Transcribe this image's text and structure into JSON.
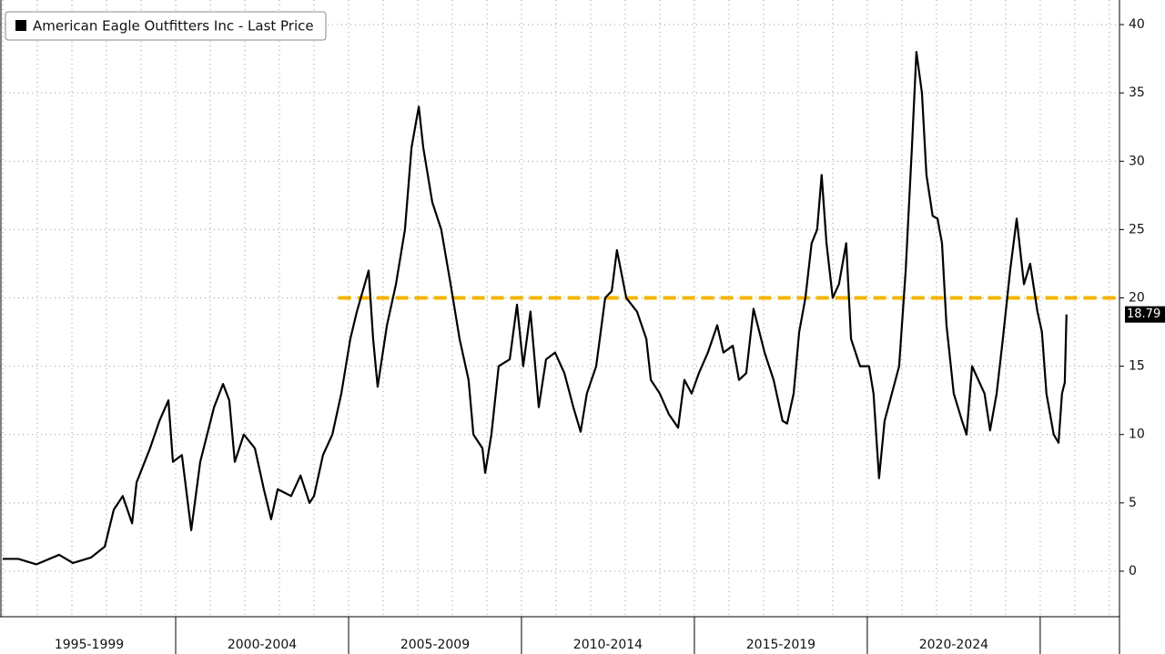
{
  "chart_data": {
    "type": "line",
    "x": [
      1995.0,
      1995.45,
      1995.97,
      1996.63,
      1997.03,
      1997.55,
      1997.95,
      1998.21,
      1998.47,
      1998.74,
      1998.87,
      1999.26,
      1999.53,
      1999.79,
      1999.92,
      2000.18,
      2000.45,
      2000.71,
      2001.11,
      2001.37,
      2001.55,
      2001.71,
      2001.97,
      2002.29,
      2002.55,
      2002.76,
      2002.95,
      2003.34,
      2003.61,
      2003.87,
      2004.0,
      2004.26,
      2004.53,
      2004.79,
      2005.05,
      2005.24,
      2005.58,
      2005.71,
      2005.84,
      2006.11,
      2006.37,
      2006.63,
      2006.82,
      2007.03,
      2007.16,
      2007.42,
      2007.68,
      2007.95,
      2008.21,
      2008.47,
      2008.61,
      2008.87,
      2008.95,
      2009.13,
      2009.34,
      2009.66,
      2009.87,
      2010.05,
      2010.26,
      2010.5,
      2010.71,
      2010.97,
      2011.24,
      2011.5,
      2011.71,
      2011.89,
      2012.16,
      2012.42,
      2012.61,
      2012.76,
      2013.03,
      2013.34,
      2013.61,
      2013.74,
      2014.0,
      2014.26,
      2014.53,
      2014.71,
      2014.92,
      2015.13,
      2015.39,
      2015.66,
      2015.84,
      2016.11,
      2016.29,
      2016.5,
      2016.71,
      2017.03,
      2017.29,
      2017.55,
      2017.68,
      2017.87,
      2018.03,
      2018.21,
      2018.39,
      2018.55,
      2018.68,
      2018.82,
      2019.0,
      2019.18,
      2019.39,
      2019.53,
      2019.79,
      2020.05,
      2020.18,
      2020.34,
      2020.5,
      2020.71,
      2020.92,
      2021.11,
      2021.29,
      2021.42,
      2021.58,
      2021.71,
      2021.89,
      2022.03,
      2022.16,
      2022.29,
      2022.5,
      2022.74,
      2022.87,
      2023.03,
      2023.21,
      2023.39,
      2023.55,
      2023.74,
      2023.92,
      2024.13,
      2024.32,
      2024.53,
      2024.71,
      2024.92,
      2025.05,
      2025.18,
      2025.39,
      2025.53,
      2025.63,
      2025.71,
      2025.76
    ],
    "series": [
      {
        "name": "American Eagle Outfitters Inc - Last Price",
        "color": "#000000",
        "values": [
          0.9,
          0.9,
          0.5,
          1.2,
          0.6,
          1.0,
          1.8,
          4.5,
          5.5,
          3.5,
          6.5,
          9,
          11,
          12.5,
          8,
          8.5,
          3,
          8,
          12,
          13.7,
          12.5,
          8,
          10,
          9,
          6,
          3.8,
          6,
          5.5,
          7,
          5,
          5.5,
          8.5,
          10,
          13,
          17,
          19,
          22,
          17,
          13.5,
          18,
          21,
          25,
          31,
          34,
          31,
          27,
          25,
          21,
          17,
          14,
          10,
          9,
          7.2,
          10,
          15,
          15.5,
          19.5,
          15,
          19,
          12,
          15.5,
          16,
          14.5,
          12,
          10.2,
          13,
          15,
          20,
          20.5,
          23.5,
          20,
          19,
          17,
          14,
          13,
          11.5,
          10.5,
          14,
          13,
          14.5,
          16,
          18,
          16,
          16.5,
          14,
          14.5,
          19.2,
          16,
          14,
          11,
          10.8,
          13,
          17.5,
          20,
          24,
          25,
          29,
          24,
          20,
          21,
          24,
          17,
          15,
          15,
          13,
          6.8,
          11,
          13,
          15,
          22,
          31,
          38,
          35,
          29,
          26,
          25.8,
          24,
          18,
          13,
          11,
          10,
          15,
          14,
          13,
          10.3,
          13,
          17,
          22,
          25.8,
          21,
          22.5,
          19,
          17.5,
          13,
          10,
          9.4,
          13,
          13.8,
          18.79
        ]
      }
    ],
    "reference_line": {
      "value": 20,
      "start": 2004.7,
      "color": "#f5b400"
    },
    "xlim": [
      1994.92,
      2027.24
    ],
    "xticks": [
      {
        "value": 1997.5,
        "label": "1995-1999"
      },
      {
        "value": 2002.5,
        "label": "2000-2004"
      },
      {
        "value": 2007.5,
        "label": "2005-2009"
      },
      {
        "value": 2012.5,
        "label": "2010-2014"
      },
      {
        "value": 2017.5,
        "label": "2015-2019"
      },
      {
        "value": 2022.5,
        "label": "2020-2024"
      }
    ],
    "ylim": [
      -3.33,
      41.8
    ],
    "yticks": [
      0,
      5,
      10,
      15,
      20,
      25,
      30,
      35,
      40
    ],
    "grid": true
  }
}
